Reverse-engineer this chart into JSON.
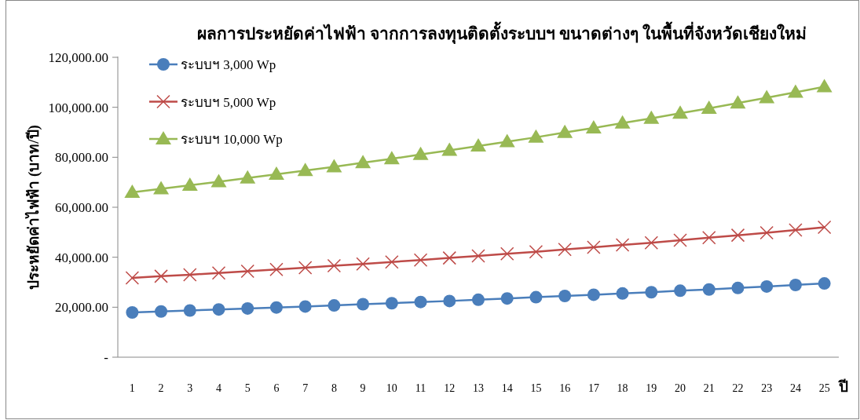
{
  "chart_data": {
    "type": "line",
    "title": "ผลการประหยัดค่าไฟฟ้า จากการลงทุนติดตั้งระบบฯ ขนาดต่างๆ ในพื้นที่จังหวัดเชียงใหม่",
    "xlabel": "ปี",
    "ylabel": "ประหยัดค่าไฟฟ้า (บาท/ปี)",
    "categories": [
      "1",
      "2",
      "3",
      "4",
      "5",
      "6",
      "7",
      "8",
      "9",
      "10",
      "11",
      "12",
      "13",
      "14",
      "15",
      "16",
      "17",
      "18",
      "19",
      "20",
      "21",
      "22",
      "23",
      "24",
      "25"
    ],
    "series": [
      {
        "name": "ระบบฯ 3,000 Wp",
        "color": "#4a7ebb",
        "marker": "circle",
        "values": [
          17900,
          18300,
          18700,
          19100,
          19500,
          19900,
          20300,
          20700,
          21200,
          21600,
          22100,
          22500,
          23000,
          23500,
          24000,
          24500,
          25000,
          25500,
          26000,
          26600,
          27100,
          27700,
          28300,
          28900,
          29500
        ]
      },
      {
        "name": "ระบบฯ 5,000 Wp",
        "color": "#be4b48",
        "marker": "cross",
        "values": [
          31700,
          32400,
          33000,
          33700,
          34400,
          35100,
          35800,
          36600,
          37300,
          38100,
          38900,
          39700,
          40500,
          41400,
          42200,
          43100,
          44000,
          44900,
          45800,
          46800,
          47800,
          48800,
          49800,
          50900,
          52000
        ]
      },
      {
        "name": "ระบบฯ 10,000 Wp",
        "color": "#98b954",
        "marker": "triangle",
        "values": [
          66000,
          67400,
          68800,
          70200,
          71700,
          73200,
          74700,
          76200,
          77800,
          79400,
          81100,
          82800,
          84500,
          86200,
          88000,
          89900,
          91700,
          93700,
          95600,
          97600,
          99600,
          101700,
          103800,
          106000,
          108200
        ]
      }
    ],
    "ylim": [
      0,
      120000
    ],
    "yticks": [
      {
        "value": 0,
        "label": "-"
      },
      {
        "value": 20000,
        "label": "20,000.00"
      },
      {
        "value": 40000,
        "label": "40,000.00"
      },
      {
        "value": 60000,
        "label": "60,000.00"
      },
      {
        "value": 80000,
        "label": "80,000.00"
      },
      {
        "value": 100000,
        "label": "100,000.00"
      },
      {
        "value": 120000,
        "label": "120,000.00"
      }
    ],
    "legend": "top left",
    "grid": false
  }
}
